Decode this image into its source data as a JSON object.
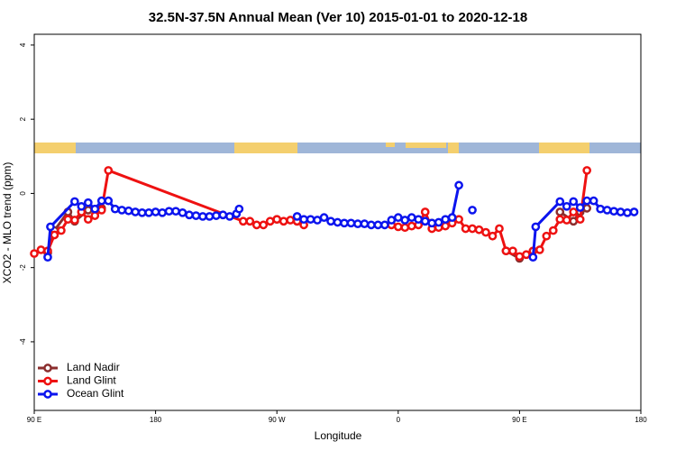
{
  "chart_data": {
    "type": "line",
    "title": "32.5N-37.5N Annual Mean (Ver 10)   2015-01-01 to 2020-12-18",
    "x_label": "Longitude",
    "y_label": "XCO2 - MLO trend (ppm)",
    "xlim": [
      90,
      540
    ],
    "ylim": [
      -5.85,
      4.29
    ],
    "xticks": [
      {
        "value": 90,
        "label": "90 E"
      },
      180,
      {
        "value": 270,
        "label": "90 W"
      },
      {
        "value": 360,
        "label": "0"
      },
      {
        "value": 450,
        "label": "90 E"
      },
      {
        "value": 540,
        "label": "180"
      }
    ],
    "yticks": [
      4,
      2,
      0,
      -2,
      -4
    ],
    "legend": "bottom-left",
    "series": [
      {
        "name": "Land Nadir",
        "color": "#8b2e2e",
        "x": [
          100,
          105,
          115,
          120,
          130,
          140,
          150,
          270,
          285,
          300,
          380,
          385,
          390,
          400,
          405,
          440,
          450,
          460,
          480,
          490,
          495,
          500
        ],
        "values": [
          -1.6,
          -1.0,
          -0.5,
          -0.75,
          -0.45,
          -0.4,
          null,
          -0.7,
          -0.75,
          null,
          -0.75,
          -0.8,
          -0.8,
          -0.65,
          null,
          -1.55,
          -1.75,
          null,
          -0.5,
          -0.75,
          -0.5,
          -0.4
        ]
      },
      {
        "name": "Land Glint",
        "color": "#ee1111",
        "x": [
          90,
          95,
          100,
          105,
          110,
          115,
          120,
          125,
          130,
          135,
          140,
          145,
          245,
          250,
          255,
          260,
          265,
          270,
          275,
          280,
          285,
          290,
          300,
          355,
          360,
          365,
          370,
          375,
          380,
          385,
          390,
          395,
          400,
          405,
          410,
          415,
          420,
          425,
          430,
          435,
          440,
          445,
          450,
          455,
          460,
          465,
          470,
          475,
          480,
          485,
          490,
          495,
          500
        ],
        "values": [
          -1.62,
          -1.52,
          -1.55,
          -1.12,
          -1.0,
          -0.7,
          -0.72,
          -0.5,
          -0.7,
          -0.6,
          -0.45,
          0.62,
          -0.75,
          -0.75,
          -0.85,
          -0.85,
          -0.75,
          -0.7,
          -0.75,
          -0.72,
          -0.75,
          -0.85,
          null,
          -0.85,
          -0.9,
          -0.92,
          -0.88,
          -0.85,
          -0.5,
          -0.95,
          -0.92,
          -0.88,
          -0.8,
          -0.7,
          -0.95,
          -0.95,
          -0.98,
          -1.05,
          -1.15,
          -0.95,
          -1.55,
          -1.55,
          -1.7,
          -1.65,
          -1.55,
          -1.52,
          -1.15,
          -1.0,
          -0.7,
          -0.72,
          -0.5,
          -0.7,
          0.62
        ]
      },
      {
        "name": "Ocean Glint",
        "color": "#0b14ee",
        "x": [
          100,
          102,
          120,
          125,
          130,
          135,
          140,
          145,
          150,
          155,
          160,
          165,
          170,
          175,
          180,
          185,
          190,
          195,
          200,
          205,
          210,
          215,
          220,
          225,
          230,
          235,
          240,
          242,
          260,
          285,
          290,
          295,
          300,
          305,
          310,
          315,
          320,
          325,
          330,
          335,
          340,
          345,
          350,
          355,
          360,
          365,
          370,
          375,
          380,
          385,
          390,
          395,
          400,
          405,
          410,
          415,
          440,
          460,
          462,
          480,
          485,
          490,
          495,
          500,
          505,
          510,
          515,
          520,
          525,
          530,
          535
        ],
        "values": [
          -1.72,
          -0.9,
          -0.22,
          -0.35,
          -0.25,
          -0.42,
          -0.2,
          -0.2,
          -0.42,
          -0.45,
          -0.47,
          -0.5,
          -0.52,
          -0.52,
          -0.5,
          -0.52,
          -0.48,
          -0.48,
          -0.52,
          -0.58,
          -0.6,
          -0.62,
          -0.62,
          -0.6,
          -0.58,
          -0.62,
          -0.55,
          -0.42,
          null,
          -0.62,
          -0.7,
          -0.7,
          -0.72,
          -0.65,
          -0.75,
          -0.78,
          -0.8,
          -0.8,
          -0.82,
          -0.82,
          -0.85,
          -0.85,
          -0.85,
          -0.72,
          -0.65,
          -0.72,
          -0.65,
          -0.7,
          -0.75,
          -0.8,
          -0.78,
          -0.7,
          -0.65,
          0.22,
          null,
          -0.45,
          null,
          -1.72,
          -0.9,
          -0.22,
          -0.35,
          -0.22,
          -0.38,
          -0.2,
          -0.2,
          -0.42,
          -0.45,
          -0.48,
          -0.5,
          -0.52,
          -0.5
        ]
      }
    ]
  }
}
